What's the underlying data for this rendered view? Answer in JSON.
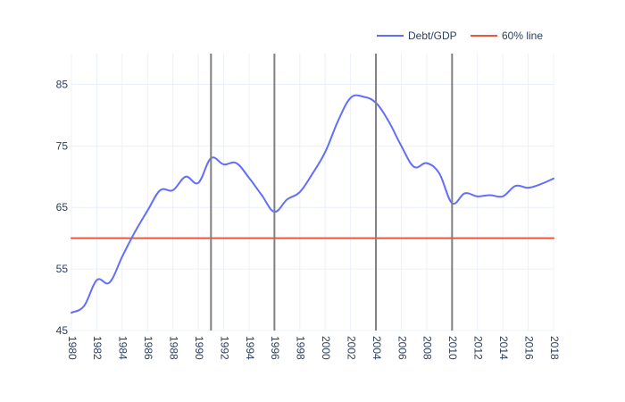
{
  "chart_data": {
    "type": "line",
    "title": "",
    "xlabel": "",
    "ylabel": "",
    "xlim": [
      1980,
      2018
    ],
    "ylim": [
      45,
      90
    ],
    "x_ticks": [
      1980,
      1982,
      1984,
      1986,
      1988,
      1990,
      1992,
      1994,
      1996,
      1998,
      2000,
      2002,
      2004,
      2006,
      2008,
      2010,
      2012,
      2014,
      2016,
      2018
    ],
    "y_ticks": [
      45,
      55,
      65,
      75,
      85
    ],
    "grid": true,
    "legend_position": "top-right",
    "series": [
      {
        "name": "Debt/GDP",
        "color": "#636efa",
        "x": [
          1980,
          1981,
          1982,
          1983,
          1984,
          1985,
          1986,
          1987,
          1988,
          1989,
          1990,
          1991,
          1992,
          1993,
          1994,
          1995,
          1996,
          1997,
          1998,
          1999,
          2000,
          2001,
          2002,
          2003,
          2004,
          2005,
          2006,
          2007,
          2008,
          2009,
          2010,
          2011,
          2012,
          2013,
          2014,
          2015,
          2016,
          2017,
          2018
        ],
        "y": [
          47.9,
          49.0,
          53.2,
          52.8,
          57.0,
          61.0,
          64.5,
          67.8,
          67.8,
          70.0,
          69.0,
          73.0,
          72.0,
          72.2,
          69.8,
          67.0,
          64.3,
          66.3,
          67.5,
          70.5,
          74.0,
          79.0,
          82.8,
          83.0,
          82.0,
          79.0,
          75.0,
          71.6,
          72.2,
          70.5,
          65.7,
          67.3,
          66.8,
          67.0,
          66.8,
          68.5,
          68.2,
          68.8,
          69.7
        ]
      },
      {
        "name": "60% line",
        "color": "#ef553b",
        "x": [
          1980,
          2018
        ],
        "y": [
          60,
          60
        ]
      }
    ],
    "vertical_lines": [
      1991,
      1996,
      2004,
      2010
    ],
    "vertical_line_color": "#808080"
  }
}
